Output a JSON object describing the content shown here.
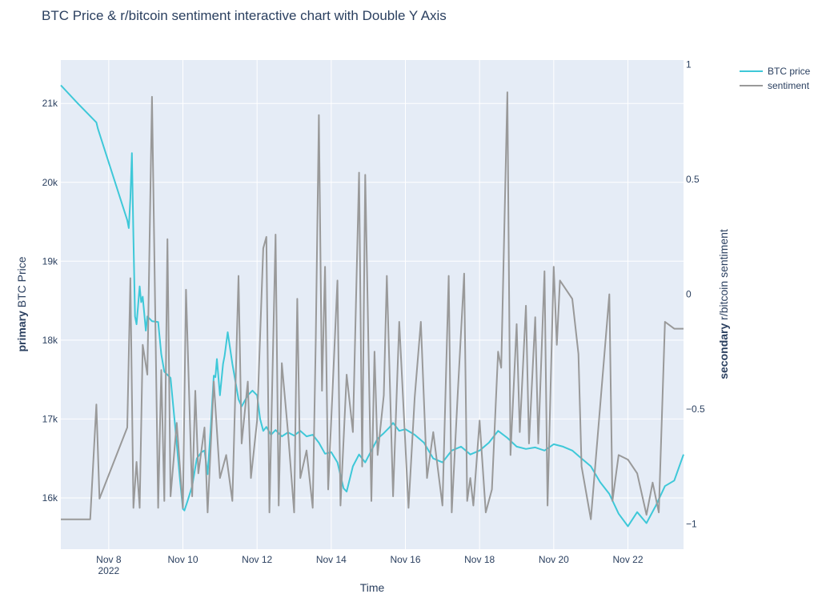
{
  "chart_data": {
    "type": "line",
    "title": "BTC Price & r/bitcoin sentiment interactive chart with Double Y Axis",
    "xlabel": "Time",
    "ylabel_primary_bold": "primary",
    "ylabel_primary_rest": "BTC Price",
    "ylabel_secondary_bold": "secondary",
    "ylabel_secondary_rest": "r/bitcoin sentiment",
    "x_range_days": [
      "2022-11-06T17:00",
      "2022-11-23T12:00"
    ],
    "x_ticks": [
      {
        "value": "2022-11-08",
        "label": "Nov 8",
        "sublabel": "2022"
      },
      {
        "value": "2022-11-10",
        "label": "Nov 10"
      },
      {
        "value": "2022-11-12",
        "label": "Nov 12"
      },
      {
        "value": "2022-11-14",
        "label": "Nov 14"
      },
      {
        "value": "2022-11-16",
        "label": "Nov 16"
      },
      {
        "value": "2022-11-18",
        "label": "Nov 18"
      },
      {
        "value": "2022-11-20",
        "label": "Nov 20"
      },
      {
        "value": "2022-11-22",
        "label": "Nov 22"
      }
    ],
    "y_primary": {
      "range": [
        15350,
        21550
      ],
      "ticks": [
        {
          "value": 16000,
          "label": "16k"
        },
        {
          "value": 17000,
          "label": "17k"
        },
        {
          "value": 18000,
          "label": "18k"
        },
        {
          "value": 19000,
          "label": "19k"
        },
        {
          "value": 20000,
          "label": "20k"
        },
        {
          "value": 21000,
          "label": "21k"
        }
      ]
    },
    "y_secondary": {
      "range": [
        -1.11,
        1.02
      ],
      "ticks": [
        {
          "value": 1,
          "label": "1"
        },
        {
          "value": 0.5,
          "label": "0.5"
        },
        {
          "value": 0,
          "label": "0"
        },
        {
          "value": -0.5,
          "label": "−0.5"
        },
        {
          "value": -1,
          "label": "−1"
        }
      ]
    },
    "grid": true,
    "legend_position": "top-right",
    "series": [
      {
        "name": "BTC price",
        "axis": "primary",
        "color": "#3ec8d8",
        "points": [
          [
            "2022-11-06T17:00",
            21230
          ],
          [
            "2022-11-07T04:00",
            21000
          ],
          [
            "2022-11-07T16:00",
            20760
          ],
          [
            "2022-11-07T17:00",
            20680
          ],
          [
            "2022-11-08T12:00",
            19520
          ],
          [
            "2022-11-08T13:00",
            19420
          ],
          [
            "2022-11-08T14:00",
            19800
          ],
          [
            "2022-11-08T15:00",
            20370
          ],
          [
            "2022-11-08T16:00",
            19300
          ],
          [
            "2022-11-08T17:00",
            18300
          ],
          [
            "2022-11-08T18:00",
            18200
          ],
          [
            "2022-11-08T20:00",
            18680
          ],
          [
            "2022-11-08T21:00",
            18480
          ],
          [
            "2022-11-08T22:00",
            18550
          ],
          [
            "2022-11-09T00:00",
            18120
          ],
          [
            "2022-11-09T01:00",
            18300
          ],
          [
            "2022-11-09T04:00",
            18240
          ],
          [
            "2022-11-09T08:00",
            18230
          ],
          [
            "2022-11-09T10:00",
            17820
          ],
          [
            "2022-11-09T12:00",
            17600
          ],
          [
            "2022-11-09T16:00",
            17520
          ],
          [
            "2022-11-09T19:00",
            16900
          ],
          [
            "2022-11-09T22:00",
            16250
          ],
          [
            "2022-11-10T00:00",
            15860
          ],
          [
            "2022-11-10T01:00",
            15840
          ],
          [
            "2022-11-10T03:00",
            15960
          ],
          [
            "2022-11-10T06:00",
            16150
          ],
          [
            "2022-11-10T09:00",
            16500
          ],
          [
            "2022-11-10T12:00",
            16580
          ],
          [
            "2022-11-10T14:00",
            16600
          ],
          [
            "2022-11-10T16:00",
            16300
          ],
          [
            "2022-11-10T18:00",
            16880
          ],
          [
            "2022-11-10T20:00",
            17550
          ],
          [
            "2022-11-10T21:00",
            17530
          ],
          [
            "2022-11-10T22:00",
            17760
          ],
          [
            "2022-11-11T00:00",
            17300
          ],
          [
            "2022-11-11T02:00",
            17700
          ],
          [
            "2022-11-11T03:00",
            17800
          ],
          [
            "2022-11-11T05:00",
            18100
          ],
          [
            "2022-11-11T08:00",
            17700
          ],
          [
            "2022-11-11T12:00",
            17250
          ],
          [
            "2022-11-11T14:00",
            17160
          ],
          [
            "2022-11-11T18:00",
            17300
          ],
          [
            "2022-11-11T21:00",
            17360
          ],
          [
            "2022-11-12T00:00",
            17300
          ],
          [
            "2022-11-12T02:00",
            17000
          ],
          [
            "2022-11-12T04:00",
            16850
          ],
          [
            "2022-11-12T06:00",
            16900
          ],
          [
            "2022-11-12T09:00",
            16800
          ],
          [
            "2022-11-12T12:00",
            16860
          ],
          [
            "2022-11-12T16:00",
            16780
          ],
          [
            "2022-11-12T20:00",
            16830
          ],
          [
            "2022-11-13T00:00",
            16790
          ],
          [
            "2022-11-13T04:00",
            16850
          ],
          [
            "2022-11-13T08:00",
            16780
          ],
          [
            "2022-11-13T12:00",
            16800
          ],
          [
            "2022-11-13T16:00",
            16700
          ],
          [
            "2022-11-13T20:00",
            16560
          ],
          [
            "2022-11-14T00:00",
            16580
          ],
          [
            "2022-11-14T04:00",
            16450
          ],
          [
            "2022-11-14T08:00",
            16120
          ],
          [
            "2022-11-14T10:00",
            16080
          ],
          [
            "2022-11-14T14:00",
            16400
          ],
          [
            "2022-11-14T18:00",
            16550
          ],
          [
            "2022-11-14T22:00",
            16450
          ],
          [
            "2022-11-15T02:00",
            16600
          ],
          [
            "2022-11-15T06:00",
            16750
          ],
          [
            "2022-11-15T10:00",
            16820
          ],
          [
            "2022-11-15T14:00",
            16900
          ],
          [
            "2022-11-15T16:00",
            16950
          ],
          [
            "2022-11-15T20:00",
            16850
          ],
          [
            "2022-11-16T00:00",
            16870
          ],
          [
            "2022-11-16T06:00",
            16800
          ],
          [
            "2022-11-16T12:00",
            16700
          ],
          [
            "2022-11-16T18:00",
            16500
          ],
          [
            "2022-11-17T00:00",
            16450
          ],
          [
            "2022-11-17T06:00",
            16600
          ],
          [
            "2022-11-17T12:00",
            16650
          ],
          [
            "2022-11-17T18:00",
            16550
          ],
          [
            "2022-11-18T00:00",
            16600
          ],
          [
            "2022-11-18T06:00",
            16700
          ],
          [
            "2022-11-18T12:00",
            16850
          ],
          [
            "2022-11-18T18:00",
            16760
          ],
          [
            "2022-11-19T00:00",
            16650
          ],
          [
            "2022-11-19T06:00",
            16620
          ],
          [
            "2022-11-19T12:00",
            16640
          ],
          [
            "2022-11-19T18:00",
            16600
          ],
          [
            "2022-11-20T00:00",
            16680
          ],
          [
            "2022-11-20T06:00",
            16650
          ],
          [
            "2022-11-20T12:00",
            16600
          ],
          [
            "2022-11-20T18:00",
            16500
          ],
          [
            "2022-11-21T00:00",
            16400
          ],
          [
            "2022-11-21T06:00",
            16200
          ],
          [
            "2022-11-21T12:00",
            16050
          ],
          [
            "2022-11-21T18:00",
            15800
          ],
          [
            "2022-11-22T00:00",
            15640
          ],
          [
            "2022-11-22T06:00",
            15820
          ],
          [
            "2022-11-22T12:00",
            15680
          ],
          [
            "2022-11-22T18:00",
            15900
          ],
          [
            "2022-11-23T00:00",
            16150
          ],
          [
            "2022-11-23T06:00",
            16220
          ],
          [
            "2022-11-23T12:00",
            16550
          ]
        ]
      },
      {
        "name": "sentiment",
        "axis": "secondary",
        "color": "#999999",
        "points": [
          [
            "2022-11-06T17:00",
            -0.98
          ],
          [
            "2022-11-07T12:00",
            -0.98
          ],
          [
            "2022-11-07T16:00",
            -0.48
          ],
          [
            "2022-11-07T18:00",
            -0.89
          ],
          [
            "2022-11-08T12:00",
            -0.58
          ],
          [
            "2022-11-08T14:00",
            0.07
          ],
          [
            "2022-11-08T16:00",
            -0.93
          ],
          [
            "2022-11-08T18:00",
            -0.73
          ],
          [
            "2022-11-08T20:00",
            -0.93
          ],
          [
            "2022-11-08T22:00",
            -0.22
          ],
          [
            "2022-11-09T01:00",
            -0.35
          ],
          [
            "2022-11-09T04:00",
            0.86
          ],
          [
            "2022-11-09T08:00",
            -0.93
          ],
          [
            "2022-11-09T10:00",
            -0.33
          ],
          [
            "2022-11-09T12:00",
            -0.9
          ],
          [
            "2022-11-09T14:00",
            0.24
          ],
          [
            "2022-11-09T16:00",
            -0.88
          ],
          [
            "2022-11-09T20:00",
            -0.56
          ],
          [
            "2022-11-10T00:00",
            -0.93
          ],
          [
            "2022-11-10T02:00",
            0.02
          ],
          [
            "2022-11-10T06:00",
            -0.88
          ],
          [
            "2022-11-10T08:00",
            -0.42
          ],
          [
            "2022-11-10T10:00",
            -0.78
          ],
          [
            "2022-11-10T14:00",
            -0.58
          ],
          [
            "2022-11-10T16:00",
            -0.95
          ],
          [
            "2022-11-10T20:00",
            -0.38
          ],
          [
            "2022-11-11T00:00",
            -0.8
          ],
          [
            "2022-11-11T04:00",
            -0.7
          ],
          [
            "2022-11-11T08:00",
            -0.9
          ],
          [
            "2022-11-11T12:00",
            0.08
          ],
          [
            "2022-11-11T14:00",
            -0.65
          ],
          [
            "2022-11-11T18:00",
            -0.38
          ],
          [
            "2022-11-11T20:00",
            -0.8
          ],
          [
            "2022-11-12T00:00",
            -0.55
          ],
          [
            "2022-11-12T04:00",
            0.2
          ],
          [
            "2022-11-12T06:00",
            0.25
          ],
          [
            "2022-11-12T08:00",
            -0.95
          ],
          [
            "2022-11-12T12:00",
            0.26
          ],
          [
            "2022-11-12T14:00",
            -0.92
          ],
          [
            "2022-11-12T16:00",
            -0.3
          ],
          [
            "2022-11-12T20:00",
            -0.6
          ],
          [
            "2022-11-13T00:00",
            -0.95
          ],
          [
            "2022-11-13T02:00",
            -0.02
          ],
          [
            "2022-11-13T04:00",
            -0.8
          ],
          [
            "2022-11-13T08:00",
            -0.68
          ],
          [
            "2022-11-13T12:00",
            -0.93
          ],
          [
            "2022-11-13T14:00",
            -0.2
          ],
          [
            "2022-11-13T16:00",
            0.78
          ],
          [
            "2022-11-13T18:00",
            -0.42
          ],
          [
            "2022-11-13T20:00",
            0.12
          ],
          [
            "2022-11-13T22:00",
            -0.85
          ],
          [
            "2022-11-14T00:00",
            -0.55
          ],
          [
            "2022-11-14T04:00",
            0.06
          ],
          [
            "2022-11-14T06:00",
            -0.92
          ],
          [
            "2022-11-14T10:00",
            -0.35
          ],
          [
            "2022-11-14T14:00",
            -0.6
          ],
          [
            "2022-11-14T18:00",
            0.53
          ],
          [
            "2022-11-14T20:00",
            -0.75
          ],
          [
            "2022-11-14T22:00",
            0.52
          ],
          [
            "2022-11-15T02:00",
            -0.9
          ],
          [
            "2022-11-15T04:00",
            -0.25
          ],
          [
            "2022-11-15T06:00",
            -0.7
          ],
          [
            "2022-11-15T10:00",
            -0.44
          ],
          [
            "2022-11-15T12:00",
            0.08
          ],
          [
            "2022-11-15T16:00",
            -0.88
          ],
          [
            "2022-11-15T20:00",
            -0.12
          ],
          [
            "2022-11-16T02:00",
            -0.93
          ],
          [
            "2022-11-16T06:00",
            -0.45
          ],
          [
            "2022-11-16T10:00",
            -0.12
          ],
          [
            "2022-11-16T14:00",
            -0.8
          ],
          [
            "2022-11-16T18:00",
            -0.6
          ],
          [
            "2022-11-17T00:00",
            -0.92
          ],
          [
            "2022-11-17T04:00",
            0.08
          ],
          [
            "2022-11-17T06:00",
            -0.95
          ],
          [
            "2022-11-17T10:00",
            -0.42
          ],
          [
            "2022-11-17T14:00",
            0.09
          ],
          [
            "2022-11-17T16:00",
            -0.9
          ],
          [
            "2022-11-17T18:00",
            -0.8
          ],
          [
            "2022-11-17T20:00",
            -0.92
          ],
          [
            "2022-11-18T00:00",
            -0.55
          ],
          [
            "2022-11-18T04:00",
            -0.95
          ],
          [
            "2022-11-18T08:00",
            -0.85
          ],
          [
            "2022-11-18T12:00",
            -0.25
          ],
          [
            "2022-11-18T14:00",
            -0.32
          ],
          [
            "2022-11-18T18:00",
            0.88
          ],
          [
            "2022-11-18T20:00",
            -0.7
          ],
          [
            "2022-11-19T00:00",
            -0.13
          ],
          [
            "2022-11-19T02:00",
            -0.6
          ],
          [
            "2022-11-19T06:00",
            -0.05
          ],
          [
            "2022-11-19T08:00",
            -0.65
          ],
          [
            "2022-11-19T12:00",
            -0.1
          ],
          [
            "2022-11-19T14:00",
            -0.65
          ],
          [
            "2022-11-19T18:00",
            0.1
          ],
          [
            "2022-11-19T20:00",
            -0.92
          ],
          [
            "2022-11-20T00:00",
            0.12
          ],
          [
            "2022-11-20T02:00",
            -0.22
          ],
          [
            "2022-11-20T04:00",
            0.06
          ],
          [
            "2022-11-20T12:00",
            -0.02
          ],
          [
            "2022-11-20T16:00",
            -0.26
          ],
          [
            "2022-11-20T18:00",
            -0.75
          ],
          [
            "2022-11-21T00:00",
            -0.98
          ],
          [
            "2022-11-21T12:00",
            0.0
          ],
          [
            "2022-11-21T14:00",
            -0.9
          ],
          [
            "2022-11-21T18:00",
            -0.7
          ],
          [
            "2022-11-22T00:00",
            -0.72
          ],
          [
            "2022-11-22T06:00",
            -0.78
          ],
          [
            "2022-11-22T12:00",
            -0.96
          ],
          [
            "2022-11-22T16:00",
            -0.82
          ],
          [
            "2022-11-22T20:00",
            -0.95
          ],
          [
            "2022-11-23T00:00",
            -0.12
          ],
          [
            "2022-11-23T06:00",
            -0.15
          ],
          [
            "2022-11-23T12:00",
            -0.15
          ]
        ]
      }
    ]
  }
}
